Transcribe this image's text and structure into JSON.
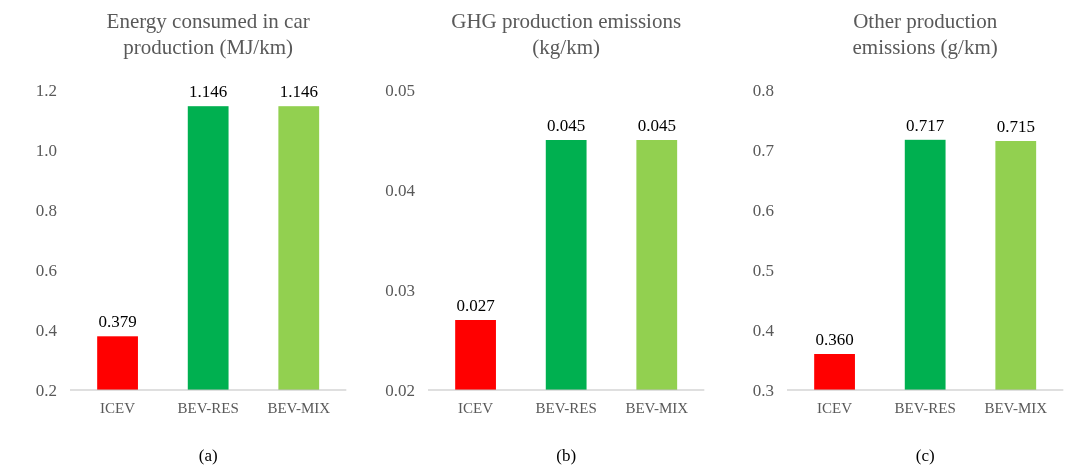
{
  "chart_data": [
    {
      "type": "bar",
      "title": "Energy consumed in car production (MJ/km)",
      "categories": [
        "ICEV",
        "BEV-RES",
        "BEV-MIX"
      ],
      "values": [
        0.379,
        1.146,
        1.146
      ],
      "colors": [
        "#ff0000",
        "#00b050",
        "#92d050"
      ],
      "value_labels": [
        "0.379",
        "1.146",
        "1.146"
      ],
      "ylim": [
        0.2,
        1.2
      ],
      "yticks": [
        0.2,
        0.4,
        0.6,
        0.8,
        {
          "value": 1,
          "label": "1.0"
        },
        1.2
      ],
      "annotations": [
        "(a)"
      ]
    },
    {
      "type": "bar",
      "title": "GHG production emissions (kg/km)",
      "categories": [
        "ICEV",
        "BEV-RES",
        "BEV-MIX"
      ],
      "values": [
        0.027,
        0.045,
        0.045
      ],
      "colors": [
        "#ff0000",
        "#00b050",
        "#92d050"
      ],
      "value_labels": [
        "0.027",
        "0.045",
        "0.045"
      ],
      "ylim": [
        0.02,
        0.05
      ],
      "yticks": [
        0.02,
        0.03,
        0.04,
        0.05
      ],
      "annotations": [
        "(b)"
      ]
    },
    {
      "type": "bar",
      "title": "Other production emissions (g/km)",
      "categories": [
        "ICEV",
        "BEV-RES",
        "BEV-MIX"
      ],
      "values": [
        0.36,
        0.717,
        0.715
      ],
      "colors": [
        "#ff0000",
        "#00b050",
        "#92d050"
      ],
      "value_labels": [
        "0.360",
        "0.717",
        "0.715"
      ],
      "ylim": [
        0.3,
        0.8
      ],
      "yticks": [
        0.3,
        0.4,
        0.5,
        0.6,
        0.7,
        0.8
      ],
      "annotations": [
        "(c)"
      ]
    }
  ]
}
